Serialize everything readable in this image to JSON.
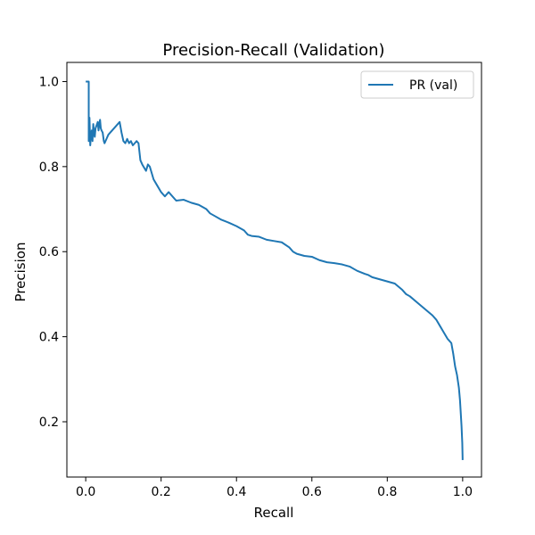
{
  "chart_data": {
    "type": "line",
    "title": "Precision-Recall (Validation)",
    "xlabel": "Recall",
    "ylabel": "Precision",
    "xlim": [
      -0.05,
      1.05
    ],
    "ylim": [
      0.07,
      1.045
    ],
    "xticks": [
      0.0,
      0.2,
      0.4,
      0.6,
      0.8,
      1.0
    ],
    "xtick_labels": [
      "0.0",
      "0.2",
      "0.4",
      "0.6",
      "0.8",
      "1.0"
    ],
    "yticks": [
      0.2,
      0.4,
      0.6,
      0.8,
      1.0
    ],
    "ytick_labels": [
      "0.2",
      "0.4",
      "0.6",
      "0.8",
      "1.0"
    ],
    "grid": false,
    "legend_position": "top-right",
    "series_color": "#1f77b4",
    "series": [
      {
        "name": "PR (val)",
        "x": [
          0.0,
          0.008,
          0.008,
          0.01,
          0.012,
          0.014,
          0.016,
          0.018,
          0.02,
          0.022,
          0.024,
          0.026,
          0.028,
          0.03,
          0.032,
          0.034,
          0.036,
          0.038,
          0.04,
          0.042,
          0.045,
          0.048,
          0.05,
          0.055,
          0.06,
          0.065,
          0.07,
          0.08,
          0.09,
          0.095,
          0.1,
          0.105,
          0.11,
          0.115,
          0.12,
          0.125,
          0.13,
          0.135,
          0.14,
          0.145,
          0.15,
          0.16,
          0.165,
          0.17,
          0.18,
          0.19,
          0.2,
          0.21,
          0.22,
          0.24,
          0.26,
          0.28,
          0.3,
          0.32,
          0.33,
          0.34,
          0.36,
          0.38,
          0.4,
          0.42,
          0.43,
          0.44,
          0.46,
          0.48,
          0.5,
          0.52,
          0.54,
          0.55,
          0.56,
          0.58,
          0.6,
          0.62,
          0.64,
          0.66,
          0.68,
          0.7,
          0.72,
          0.74,
          0.75,
          0.76,
          0.78,
          0.8,
          0.82,
          0.84,
          0.85,
          0.86,
          0.88,
          0.9,
          0.92,
          0.93,
          0.94,
          0.95,
          0.96,
          0.97,
          0.975,
          0.98,
          0.985,
          0.99,
          0.993,
          0.995,
          0.997,
          0.999,
          1.0
        ],
        "y": [
          1.0,
          1.0,
          0.86,
          0.915,
          0.85,
          0.875,
          0.885,
          0.86,
          0.9,
          0.88,
          0.87,
          0.89,
          0.895,
          0.9,
          0.905,
          0.885,
          0.9,
          0.91,
          0.89,
          0.885,
          0.88,
          0.86,
          0.855,
          0.865,
          0.875,
          0.88,
          0.885,
          0.895,
          0.905,
          0.88,
          0.86,
          0.855,
          0.865,
          0.855,
          0.86,
          0.85,
          0.855,
          0.86,
          0.855,
          0.815,
          0.805,
          0.79,
          0.805,
          0.8,
          0.77,
          0.755,
          0.74,
          0.73,
          0.74,
          0.72,
          0.722,
          0.715,
          0.71,
          0.7,
          0.69,
          0.685,
          0.675,
          0.668,
          0.66,
          0.65,
          0.64,
          0.637,
          0.635,
          0.628,
          0.625,
          0.622,
          0.61,
          0.6,
          0.595,
          0.59,
          0.588,
          0.58,
          0.575,
          0.573,
          0.57,
          0.565,
          0.555,
          0.548,
          0.545,
          0.54,
          0.535,
          0.53,
          0.525,
          0.51,
          0.5,
          0.495,
          0.48,
          0.465,
          0.45,
          0.44,
          0.425,
          0.41,
          0.395,
          0.385,
          0.36,
          0.33,
          0.31,
          0.28,
          0.25,
          0.22,
          0.19,
          0.15,
          0.11
        ]
      }
    ]
  }
}
